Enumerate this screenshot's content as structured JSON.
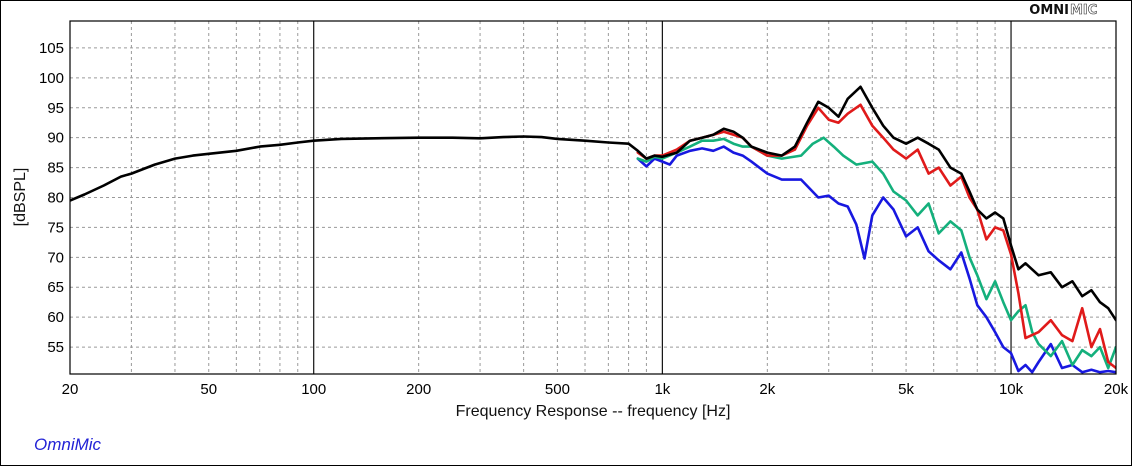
{
  "brand": {
    "part1": "OMNI",
    "part2": "MIC"
  },
  "footer": {
    "label": "OmniMic"
  },
  "chart_data": {
    "type": "line",
    "title": "",
    "xlabel": "Frequency Response -- frequency [Hz]",
    "ylabel": "[dBSPL]",
    "xscale": "log",
    "xlim": [
      20,
      20000
    ],
    "ylim": [
      50.5,
      109.5
    ],
    "grid": true,
    "x_ticks": [
      {
        "value": 20,
        "label": "20"
      },
      {
        "value": 50,
        "label": "50"
      },
      {
        "value": 100,
        "label": "100"
      },
      {
        "value": 200,
        "label": "200"
      },
      {
        "value": 500,
        "label": "500"
      },
      {
        "value": 1000,
        "label": "1k"
      },
      {
        "value": 2000,
        "label": "2k"
      },
      {
        "value": 5000,
        "label": "5k"
      },
      {
        "value": 10000,
        "label": "10k"
      },
      {
        "value": 20000,
        "label": "20k"
      }
    ],
    "y_ticks": [
      55,
      60,
      65,
      70,
      75,
      80,
      85,
      90,
      95,
      100,
      105
    ],
    "series": [
      {
        "name": "blue",
        "color": "#1818e0",
        "x": [
          850,
          900,
          950,
          1000,
          1050,
          1100,
          1200,
          1300,
          1400,
          1500,
          1600,
          1700,
          1800,
          2000,
          2200,
          2500,
          2800,
          3000,
          3200,
          3400,
          3600,
          3800,
          4000,
          4300,
          4600,
          5000,
          5400,
          5800,
          6200,
          6700,
          7200,
          7600,
          8000,
          8500,
          9000,
          9500,
          10000,
          10500,
          11000,
          11500,
          12000,
          13000,
          14000,
          15000,
          16000,
          17000,
          18000,
          19000,
          20000
        ],
        "y": [
          86.5,
          85.2,
          86.5,
          86.0,
          85.5,
          87.0,
          87.8,
          88.2,
          87.8,
          88.5,
          87.5,
          87.0,
          86.0,
          84.0,
          83.0,
          83.0,
          80.0,
          80.3,
          79.0,
          78.5,
          75.5,
          69.8,
          77.0,
          80.0,
          78.0,
          73.5,
          75.0,
          71.0,
          69.5,
          68.0,
          70.8,
          66.5,
          62.0,
          60.0,
          57.5,
          55.0,
          54.0,
          51.0,
          52.0,
          50.8,
          52.5,
          55.5,
          51.5,
          52.0,
          50.8,
          51.2,
          50.8,
          51.0,
          50.8
        ]
      },
      {
        "name": "green",
        "color": "#14b07c",
        "x": [
          850,
          900,
          950,
          1000,
          1100,
          1200,
          1300,
          1400,
          1500,
          1600,
          1700,
          1800,
          2000,
          2200,
          2500,
          2700,
          2900,
          3100,
          3300,
          3600,
          4000,
          4300,
          4600,
          5000,
          5400,
          5800,
          6200,
          6700,
          7200,
          7600,
          8000,
          8500,
          9000,
          9500,
          10000,
          10500,
          11000,
          11500,
          12000,
          13000,
          14000,
          15000,
          16000,
          17000,
          18000,
          19000,
          20000
        ],
        "y": [
          86.5,
          86.0,
          86.8,
          86.5,
          87.5,
          88.5,
          89.5,
          89.5,
          89.8,
          89.0,
          88.5,
          88.5,
          87.0,
          86.5,
          87.0,
          89.0,
          90.0,
          88.5,
          87.0,
          85.5,
          86.0,
          84.0,
          81.0,
          79.5,
          77.0,
          79.0,
          74.0,
          76.0,
          74.5,
          70.0,
          67.0,
          63.0,
          66.0,
          62.5,
          59.5,
          61.0,
          62.0,
          57.5,
          55.5,
          53.5,
          56.0,
          52.0,
          54.5,
          53.5,
          55.0,
          51.5,
          55.0
        ]
      },
      {
        "name": "red",
        "color": "#e01a1a",
        "x": [
          850,
          900,
          950,
          1000,
          1100,
          1200,
          1300,
          1400,
          1500,
          1600,
          1700,
          1800,
          2000,
          2200,
          2400,
          2600,
          2800,
          3000,
          3200,
          3400,
          3700,
          4000,
          4300,
          4600,
          5000,
          5400,
          5800,
          6200,
          6700,
          7200,
          7600,
          8000,
          8500,
          9000,
          9500,
          10000,
          10500,
          11000,
          12000,
          13000,
          14000,
          15000,
          16000,
          17000,
          18000,
          19000,
          20000
        ],
        "y": [
          87.5,
          86.5,
          87.0,
          87.0,
          88.0,
          89.5,
          90.0,
          90.5,
          91.0,
          90.5,
          90.0,
          88.5,
          87.0,
          87.0,
          88.0,
          92.0,
          95.0,
          93.0,
          92.5,
          94.0,
          95.5,
          92.0,
          90.0,
          88.0,
          86.5,
          88.0,
          84.0,
          85.0,
          82.0,
          83.5,
          80.0,
          78.0,
          73.0,
          75.0,
          74.5,
          70.5,
          64.0,
          56.5,
          57.5,
          59.5,
          57.0,
          56.0,
          61.5,
          55.0,
          58.0,
          52.5,
          51.5
        ]
      },
      {
        "name": "black",
        "color": "#000000",
        "x": [
          20,
          22,
          25,
          28,
          30,
          35,
          40,
          45,
          50,
          60,
          70,
          80,
          90,
          100,
          120,
          150,
          200,
          250,
          300,
          350,
          400,
          450,
          500,
          600,
          700,
          800,
          850,
          900,
          950,
          1000,
          1100,
          1200,
          1300,
          1400,
          1500,
          1600,
          1700,
          1800,
          2000,
          2200,
          2400,
          2600,
          2800,
          3000,
          3200,
          3400,
          3700,
          4000,
          4300,
          4600,
          5000,
          5400,
          5800,
          6200,
          6700,
          7200,
          7600,
          8000,
          8500,
          9000,
          9500,
          10000,
          10500,
          11000,
          12000,
          13000,
          14000,
          15000,
          16000,
          17000,
          18000,
          19000,
          20000
        ],
        "y": [
          79.5,
          80.5,
          82.0,
          83.5,
          84.0,
          85.5,
          86.5,
          87.0,
          87.3,
          87.8,
          88.5,
          88.8,
          89.2,
          89.5,
          89.8,
          89.9,
          90.0,
          90.0,
          89.9,
          90.1,
          90.2,
          90.1,
          89.8,
          89.5,
          89.2,
          89.0,
          87.8,
          86.5,
          87.0,
          86.8,
          87.5,
          89.5,
          90.0,
          90.5,
          91.5,
          91.0,
          90.0,
          88.5,
          87.5,
          87.0,
          88.5,
          92.5,
          96.0,
          95.0,
          93.5,
          96.5,
          98.5,
          95.0,
          92.0,
          90.0,
          89.0,
          90.0,
          89.0,
          88.0,
          85.0,
          84.0,
          81.0,
          78.0,
          76.5,
          77.5,
          76.5,
          72.0,
          68.0,
          69.0,
          67.0,
          67.5,
          65.0,
          66.0,
          63.5,
          64.5,
          62.5,
          61.5,
          59.5
        ]
      }
    ]
  }
}
